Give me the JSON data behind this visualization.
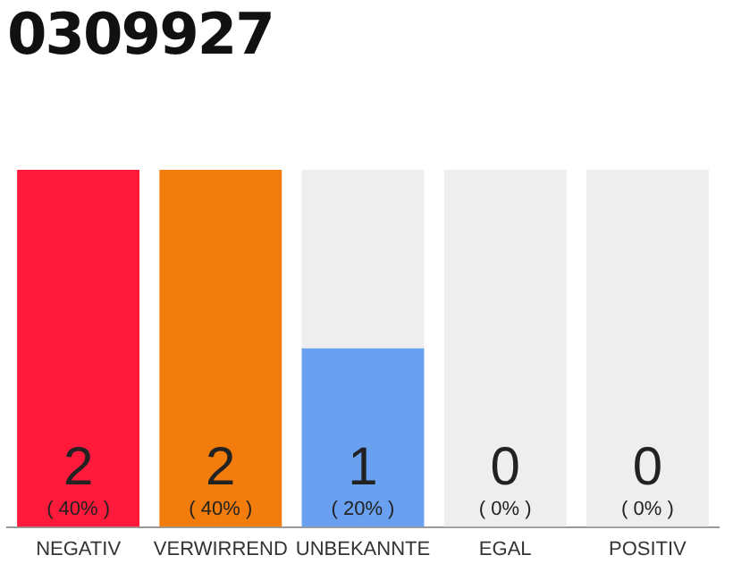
{
  "chart_data": {
    "type": "bar",
    "title": "0309927",
    "categories": [
      "NEGATIV",
      "VERWIRREND",
      "UNBEKANNTE",
      "EGAL",
      "POSITIV"
    ],
    "stacked": true,
    "series": [
      {
        "colors": [
          "#ff1a3c",
          "#f27c0c",
          "#6aa0f0",
          "#eeeeee",
          "#eeeeee"
        ],
        "values": [
          40,
          40,
          20,
          0,
          0
        ],
        "value_labels": [
          "2\n( 40% )",
          "2\n( 40% )",
          "1\n( 20% )",
          null,
          null
        ]
      },
      {
        "color": "#eeeeee",
        "values": [
          0,
          0,
          20,
          40,
          40
        ]
      }
    ],
    "annotations": [
      {
        "text": "0\n( 0% )",
        "x": "EGAL",
        "y": 0
      },
      {
        "text": "0\n( 0% )",
        "x": "POSITIV",
        "y": 0
      }
    ],
    "grid": false,
    "legend": false
  }
}
